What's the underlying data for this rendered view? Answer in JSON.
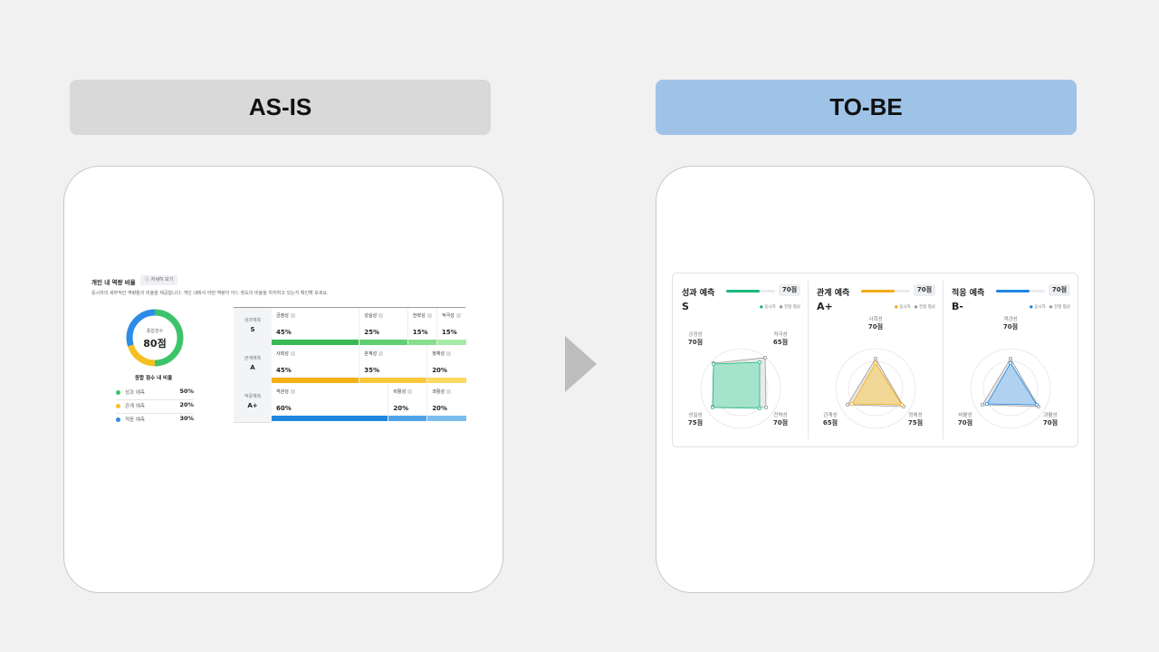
{
  "headers": {
    "asis": "AS-IS",
    "tobe": "TO-BE"
  },
  "asis": {
    "section_title": "개인 내 역량 비율",
    "detail_button": "자세히 보기",
    "description": "응시자의 세부적인 역량들의 비율을 제공합니다. 개인 내에서 어떤 역량이 어느 정도의 비율을 차지하고 있는지 확인해 보세요.",
    "donut": {
      "label": "종합점수",
      "score": "80점",
      "segments": [
        {
          "color": "#3cc46a",
          "value": 50
        },
        {
          "color": "#f5c021",
          "value": 20
        },
        {
          "color": "#2e8ce6",
          "value": 30
        }
      ]
    },
    "legend_title": "종합 점수 내 비율",
    "legend": [
      {
        "label": "성과 예측",
        "value": "50%",
        "color": "#3cc46a"
      },
      {
        "label": "관계 예측",
        "value": "20%",
        "color": "#f5c021"
      },
      {
        "label": "적응 예측",
        "value": "30%",
        "color": "#2e8ce6"
      }
    ],
    "rows": [
      {
        "label": "성과예측",
        "grade": "S",
        "cells": [
          {
            "name": "긍정성",
            "value": "45%",
            "pct": 45,
            "color": "#3ab854"
          },
          {
            "name": "성실성",
            "value": "25%",
            "pct": 25,
            "color": "#5fcf72"
          },
          {
            "name": "전략성",
            "value": "15%",
            "pct": 15,
            "color": "#86de8e"
          },
          {
            "name": "적극성",
            "value": "15%",
            "pct": 15,
            "color": "#a8eaa8"
          }
        ]
      },
      {
        "label": "관계예측",
        "grade": "A",
        "cells": [
          {
            "name": "사회성",
            "value": "45%",
            "pct": 45,
            "color": "#f5b014"
          },
          {
            "name": "관계성",
            "value": "35%",
            "pct": 35,
            "color": "#fac83a"
          },
          {
            "name": "정체성",
            "value": "20%",
            "pct": 20,
            "color": "#fdd862"
          }
        ]
      },
      {
        "label": "적응예측",
        "grade": "A+",
        "cells": [
          {
            "name": "객관성",
            "value": "60%",
            "pct": 60,
            "color": "#1f86e0"
          },
          {
            "name": "비활성",
            "value": "20%",
            "pct": 20,
            "color": "#4ea3ea"
          },
          {
            "name": "과활성",
            "value": "20%",
            "pct": 20,
            "color": "#7cbdf0"
          }
        ]
      }
    ]
  },
  "tobe": {
    "legend_me": "응시자",
    "legend_avg": "전형 평균",
    "cards": [
      {
        "title": "성과 예측",
        "grade": "S",
        "score": "70점",
        "progress": 0.68,
        "color": "#1ab87a",
        "fill": "#8fe0c3",
        "axes": [
          {
            "label": "긍정성",
            "value": "70점"
          },
          {
            "label": "적극성",
            "value": "65점"
          },
          {
            "label": "전략성",
            "value": "70점"
          },
          {
            "label": "성실성",
            "value": "75점"
          }
        ]
      },
      {
        "title": "관계 예측",
        "grade": "A+",
        "score": "70점",
        "progress": 0.68,
        "color": "#f5ab14",
        "fill": "#f3d27a",
        "axes": [
          {
            "label": "사회성",
            "value": "70점"
          },
          {
            "label": "정체성",
            "value": "75점"
          },
          {
            "label": "관계성",
            "value": "65점"
          }
        ]
      },
      {
        "title": "적응 예측",
        "grade": "B-",
        "score": "70점",
        "progress": 0.68,
        "color": "#1f86e0",
        "fill": "#9cc9f2",
        "axes": [
          {
            "label": "객관성",
            "value": "70점"
          },
          {
            "label": "과활성",
            "value": "70점"
          },
          {
            "label": "비활성",
            "value": "70점"
          }
        ]
      }
    ]
  }
}
